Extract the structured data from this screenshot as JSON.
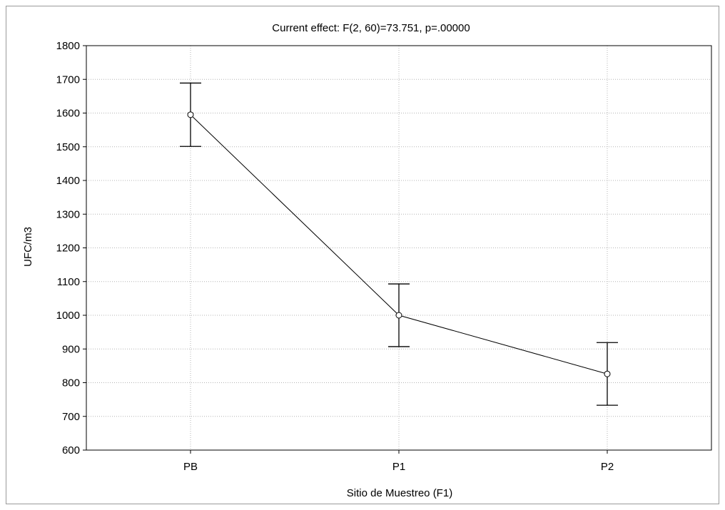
{
  "chart_data": {
    "type": "line",
    "title": "Current effect: F(2, 60)=73.751, p=.00000",
    "xlabel": "Sitio de Muestreo (F1)",
    "ylabel": "UFC/m3",
    "categories": [
      "PB",
      "P1",
      "P2"
    ],
    "series": [
      {
        "values": [
          1595,
          1000,
          826
        ],
        "lower": [
          1501,
          907,
          733
        ],
        "upper": [
          1689,
          1093,
          919
        ]
      }
    ],
    "ylim": [
      600,
      1800
    ],
    "yticks": [
      600,
      700,
      800,
      900,
      1000,
      1100,
      1200,
      1300,
      1400,
      1500,
      1600,
      1700,
      1800
    ],
    "grid": true,
    "colors": {
      "line": "#000000",
      "grid": "#b4b4b4",
      "marker_fill": "#ffffff"
    }
  }
}
